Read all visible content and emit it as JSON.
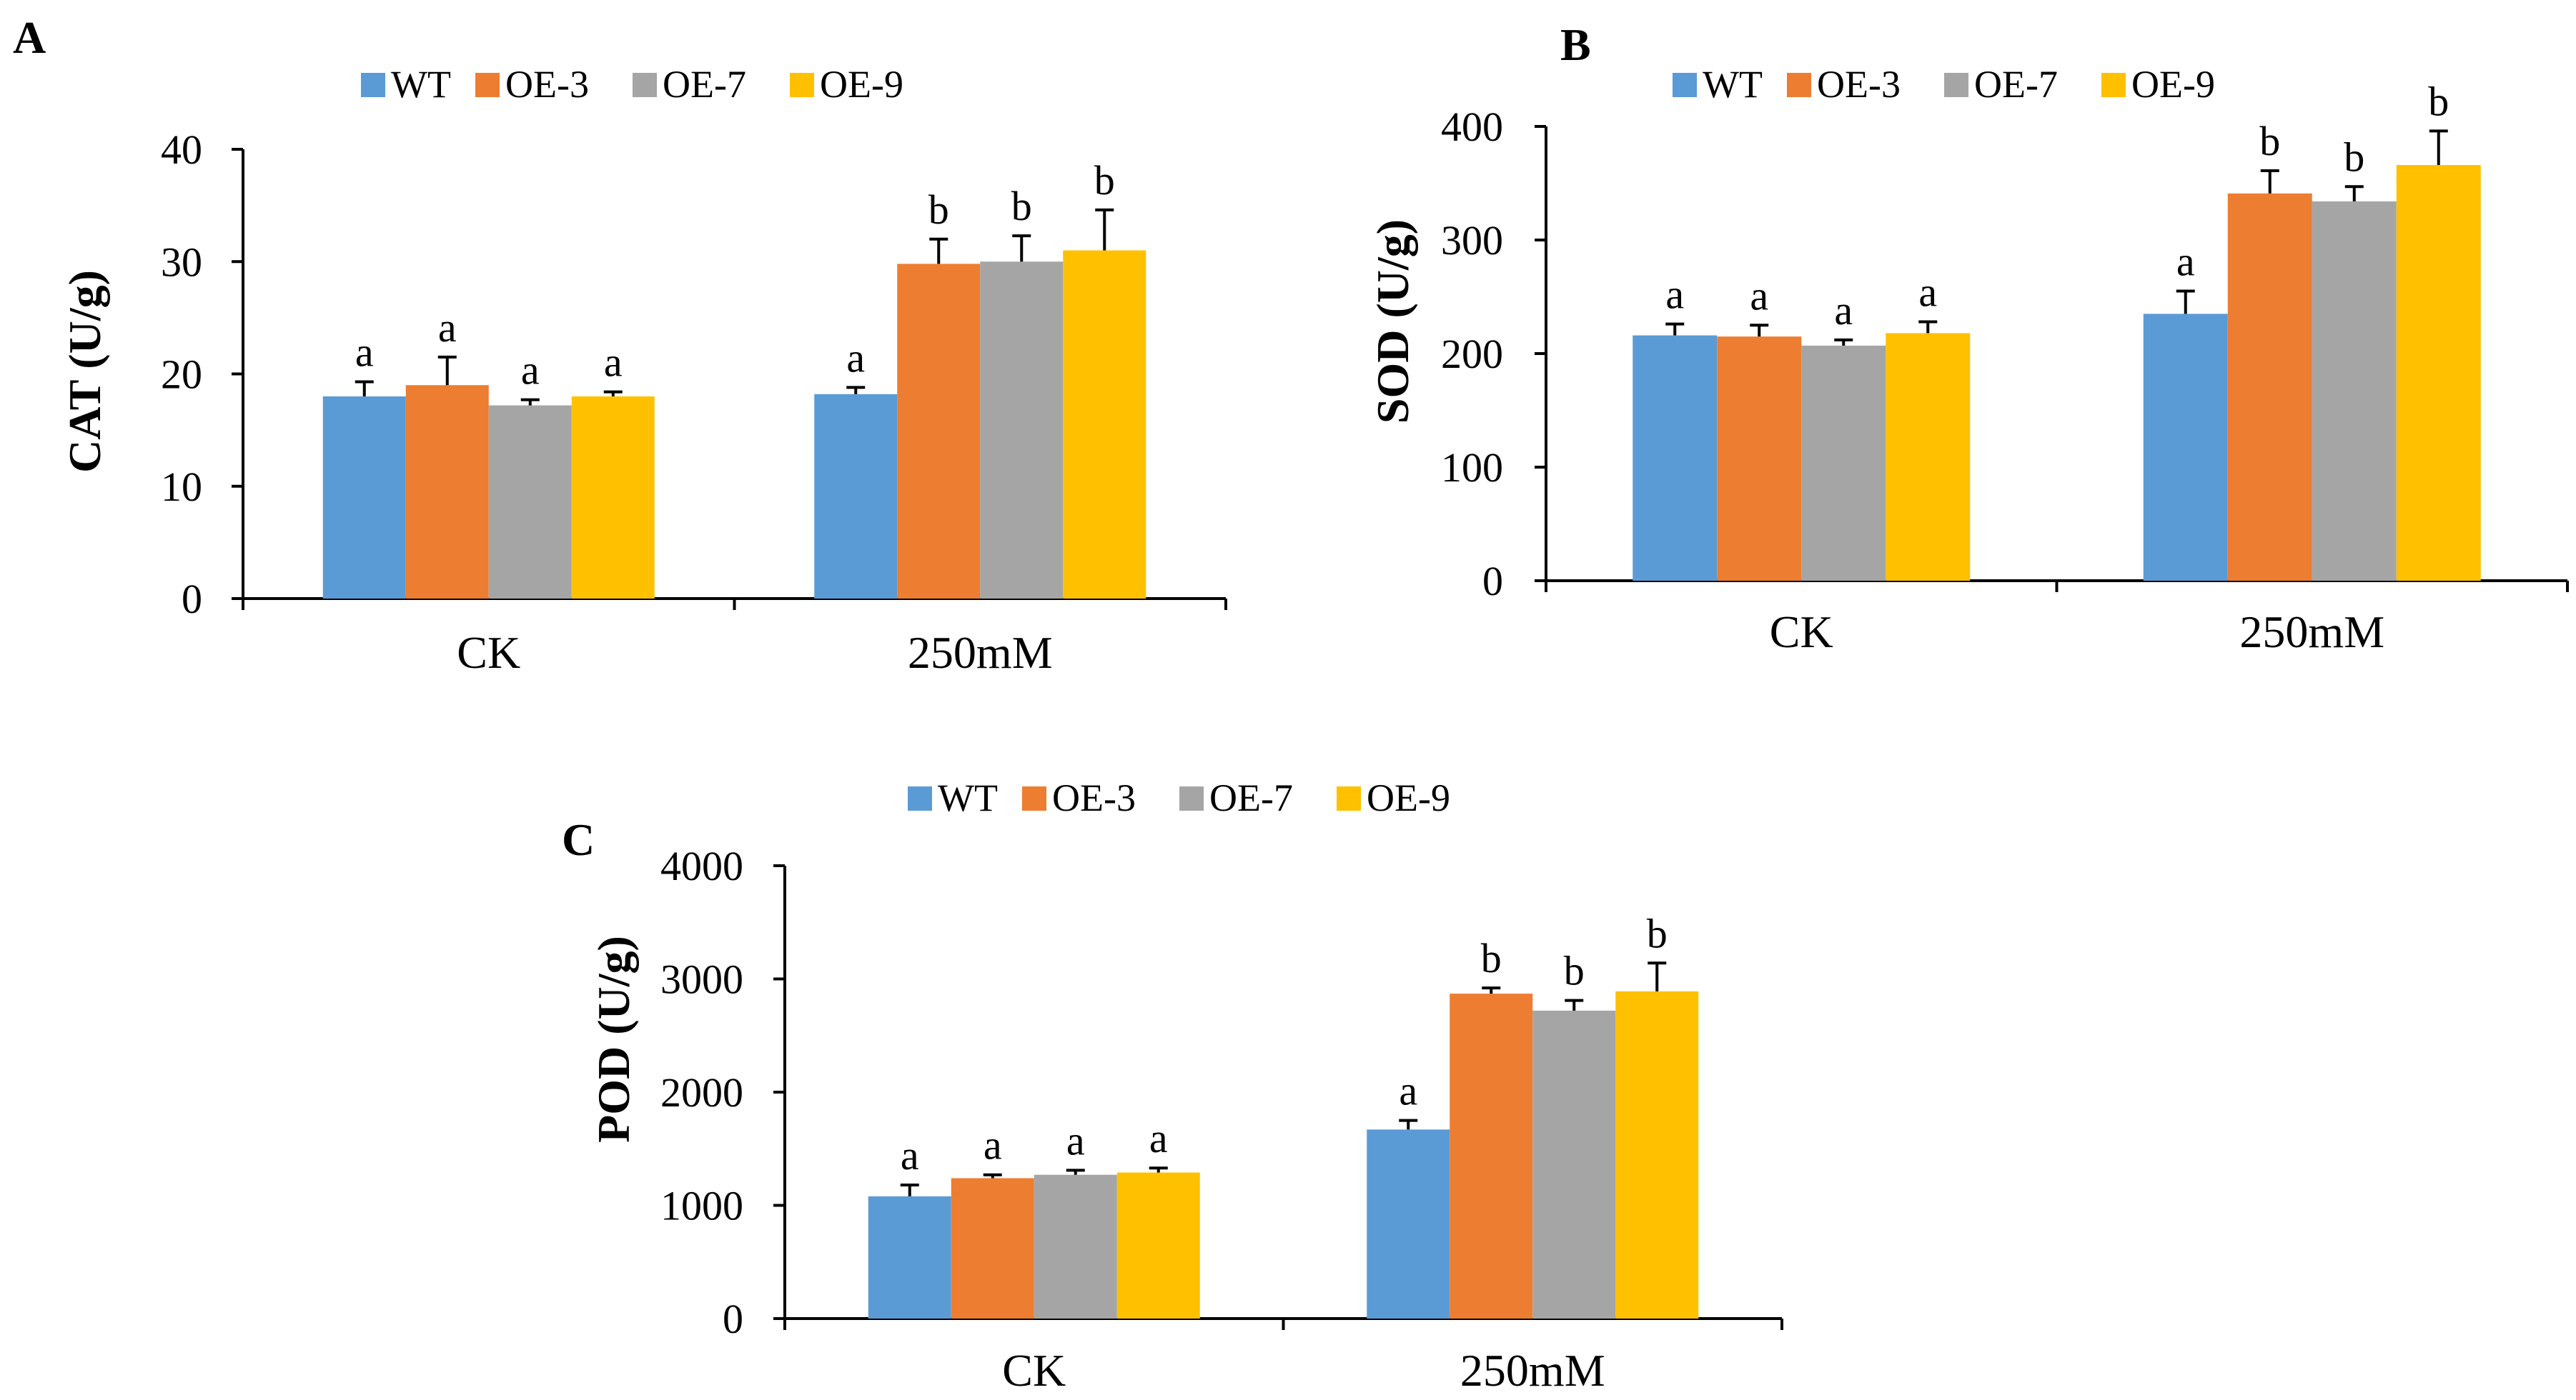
{
  "legend": {
    "series": [
      "WT",
      "OE-3",
      "OE-7",
      "OE-9"
    ],
    "colors": [
      "#5B9BD5",
      "#ED7D31",
      "#A5A5A5",
      "#FFC000"
    ]
  },
  "chart_data": [
    {
      "type": "bar",
      "panel": "A",
      "title": "",
      "xlabel": "",
      "ylabel": "CAT (U/g)",
      "categories": [
        "CK",
        "250mM"
      ],
      "ylim": [
        0,
        40
      ],
      "yticks": [
        "0",
        "10",
        "20",
        "30",
        "40"
      ],
      "series": [
        {
          "name": "WT",
          "values": [
            18.0,
            18.2
          ],
          "errors": [
            1.3,
            0.6
          ],
          "labels": [
            "a",
            "a"
          ]
        },
        {
          "name": "OE-3",
          "values": [
            19.0,
            29.8
          ],
          "errors": [
            2.5,
            2.2
          ],
          "labels": [
            "a",
            "b"
          ]
        },
        {
          "name": "OE-7",
          "values": [
            17.2,
            30.0
          ],
          "errors": [
            0.5,
            2.3
          ],
          "labels": [
            "a",
            "b"
          ]
        },
        {
          "name": "OE-9",
          "values": [
            18.0,
            31.0
          ],
          "errors": [
            0.4,
            3.6
          ],
          "labels": [
            "a",
            "b"
          ]
        }
      ]
    },
    {
      "type": "bar",
      "panel": "B",
      "title": "",
      "xlabel": "",
      "ylabel": "SOD (U/g)",
      "categories": [
        "CK",
        "250mM"
      ],
      "ylim": [
        0,
        400
      ],
      "yticks": [
        "0",
        "100",
        "200",
        "300",
        "400"
      ],
      "series": [
        {
          "name": "WT",
          "values": [
            216,
            235
          ],
          "errors": [
            10,
            20
          ],
          "labels": [
            "a",
            "a"
          ]
        },
        {
          "name": "OE-3",
          "values": [
            215,
            341
          ],
          "errors": [
            10,
            20
          ],
          "labels": [
            "a",
            "b"
          ]
        },
        {
          "name": "OE-7",
          "values": [
            207,
            334
          ],
          "errors": [
            5,
            13
          ],
          "labels": [
            "a",
            "b"
          ]
        },
        {
          "name": "OE-9",
          "values": [
            218,
            366
          ],
          "errors": [
            10,
            30
          ],
          "labels": [
            "a",
            "b"
          ]
        }
      ]
    },
    {
      "type": "bar",
      "panel": "C",
      "title": "",
      "xlabel": "",
      "ylabel": "POD (U/g)",
      "categories": [
        "CK",
        "250mM"
      ],
      "ylim": [
        0,
        4000
      ],
      "yticks": [
        "0",
        "1000",
        "2000",
        "3000",
        "4000"
      ],
      "series": [
        {
          "name": "WT",
          "values": [
            1080,
            1670
          ],
          "errors": [
            100,
            80
          ],
          "labels": [
            "a",
            "a"
          ]
        },
        {
          "name": "OE-3",
          "values": [
            1240,
            2870
          ],
          "errors": [
            30,
            50
          ],
          "labels": [
            "a",
            "b"
          ]
        },
        {
          "name": "OE-7",
          "values": [
            1270,
            2720
          ],
          "errors": [
            40,
            90
          ],
          "labels": [
            "a",
            "b"
          ]
        },
        {
          "name": "OE-9",
          "values": [
            1290,
            2890
          ],
          "errors": [
            40,
            250
          ],
          "labels": [
            "a",
            "b"
          ]
        }
      ]
    }
  ]
}
